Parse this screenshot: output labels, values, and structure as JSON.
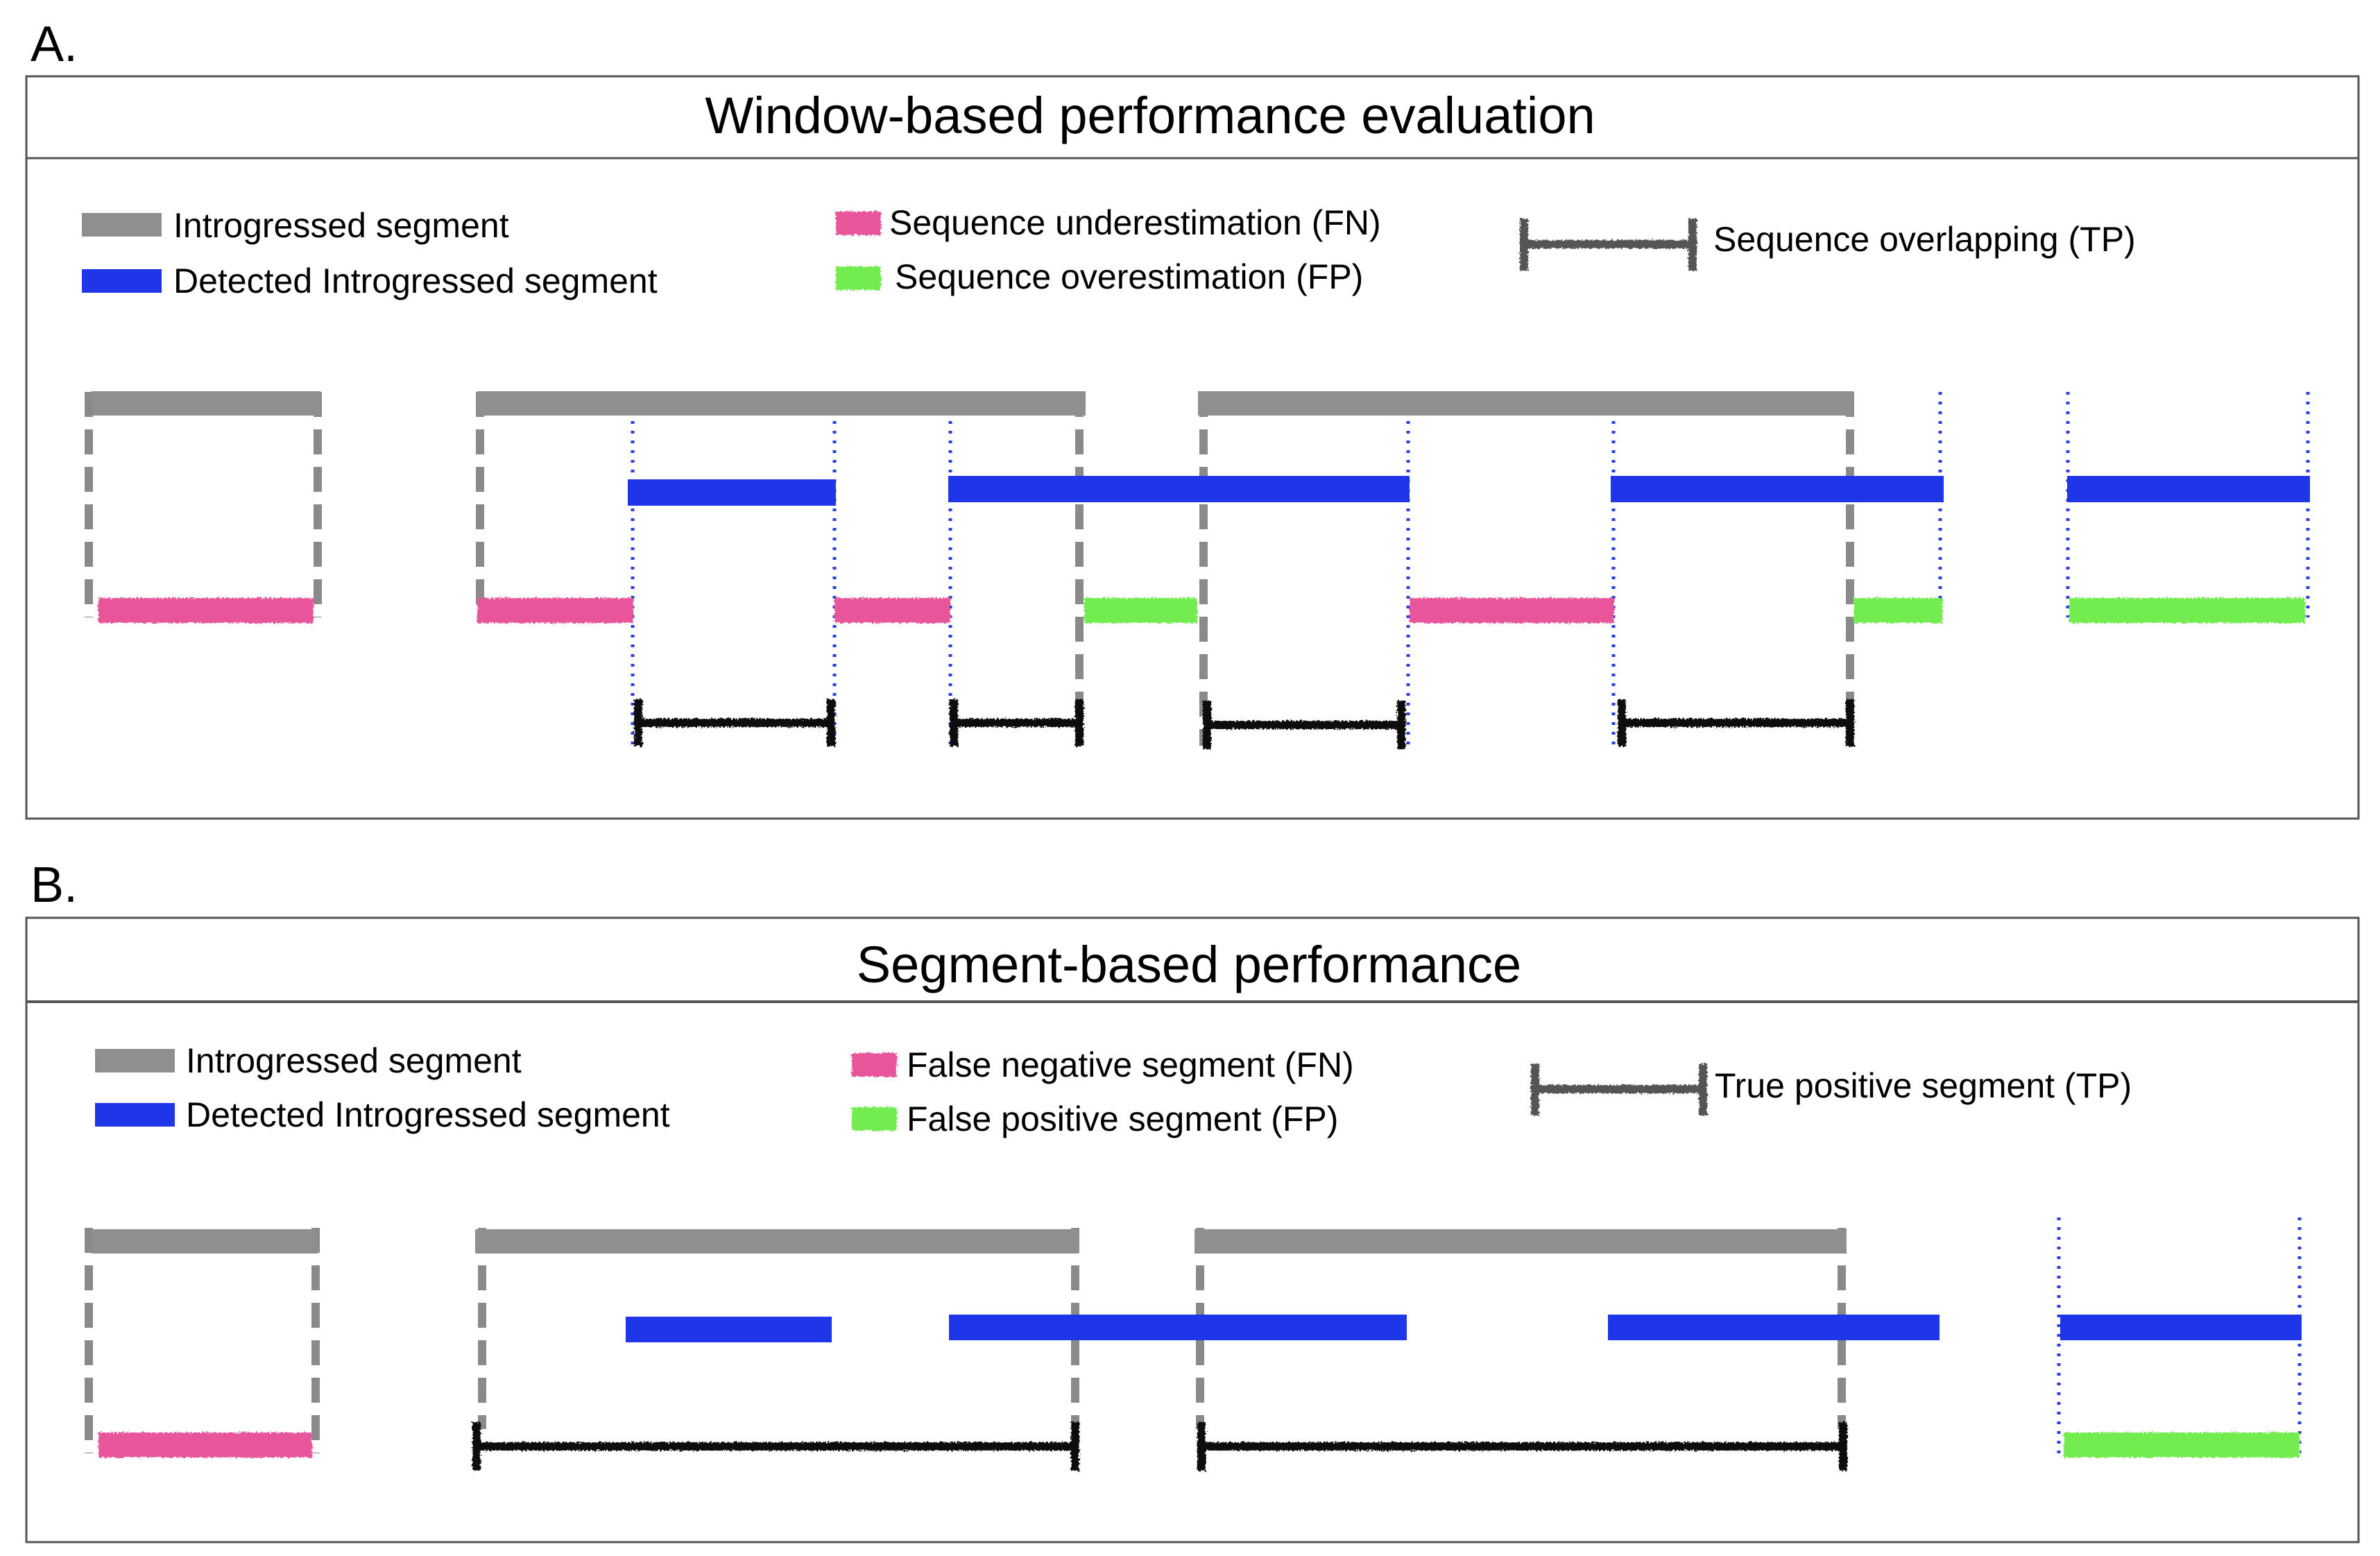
{
  "panels": [
    {
      "letter": "A.",
      "title": "Window-based performance evaluation",
      "legend": {
        "introgressed": "Introgressed segment",
        "detected": "Detected Introgressed segment",
        "fn": "Sequence underestimation (FN)",
        "fp": "Sequence overestimation (FP)",
        "tp": "Sequence overlapping (TP)"
      }
    },
    {
      "letter": "B.",
      "title": "Segment-based performance",
      "legend": {
        "introgressed": "Introgressed segment",
        "detected": "Detected Introgressed segment",
        "fn": "False negative segment (FN)",
        "fp": "False positive segment (FP)",
        "tp": "True positive segment (TP)"
      }
    }
  ],
  "colors": {
    "introgressed": "#8f8f8f",
    "detected": "#1f35e8",
    "fn": "#e8559b",
    "fp": "#72ec4f",
    "tp": "#111111",
    "guide_gray": "#8a8a8a",
    "guide_blue": "#2a3fe0",
    "frame": "#555555"
  }
}
